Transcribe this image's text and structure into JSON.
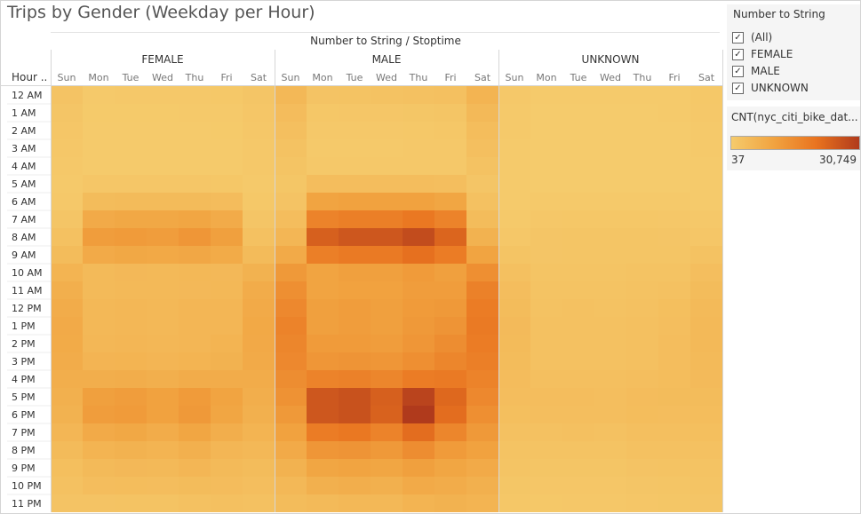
{
  "title": "Trips by Gender (Weekday per Hour)",
  "column_field_header": "Number to String / Stoptime",
  "row_field_header": "Hour ..",
  "filter": {
    "title": "Number to String",
    "options": [
      {
        "label": "(All)",
        "checked": true
      },
      {
        "label": "FEMALE",
        "checked": true
      },
      {
        "label": "MALE",
        "checked": true
      },
      {
        "label": "UNKNOWN",
        "checked": true
      }
    ]
  },
  "legend": {
    "title": "CNT(nyc_citi_bike_dat...",
    "min_label": "37",
    "max_label": "30,749",
    "colors": [
      "#f5cb6c",
      "#f1a340",
      "#e9731f",
      "#b03a1c"
    ]
  },
  "chart_data": {
    "type": "heatmap",
    "title": "Trips by Gender (Weekday per Hour)",
    "column_groups": [
      "FEMALE",
      "MALE",
      "UNKNOWN"
    ],
    "days": [
      "Sun",
      "Mon",
      "Tue",
      "Wed",
      "Thu",
      "Fri",
      "Sat"
    ],
    "hours": [
      "12 AM",
      "1 AM",
      "2 AM",
      "3 AM",
      "4 AM",
      "5 AM",
      "6 AM",
      "7 AM",
      "8 AM",
      "9 AM",
      "10 AM",
      "11 AM",
      "12 PM",
      "1 PM",
      "2 PM",
      "3 PM",
      "4 PM",
      "5 PM",
      "6 PM",
      "7 PM",
      "8 PM",
      "9 PM",
      "10 PM",
      "11 PM"
    ],
    "color_range": [
      37,
      30749
    ],
    "series": [
      {
        "name": "FEMALE",
        "values": [
          [
            2000,
            600,
            700,
            700,
            800,
            900,
            1500
          ],
          [
            1500,
            400,
            400,
            400,
            500,
            500,
            1200
          ],
          [
            1200,
            300,
            300,
            300,
            300,
            400,
            1000
          ],
          [
            1000,
            200,
            200,
            200,
            200,
            300,
            800
          ],
          [
            800,
            300,
            300,
            300,
            300,
            300,
            700
          ],
          [
            600,
            1200,
            1200,
            1200,
            1200,
            1100,
            500
          ],
          [
            800,
            4000,
            4200,
            4200,
            4200,
            3800,
            900
          ],
          [
            1500,
            8500,
            9000,
            9000,
            9500,
            8200,
            1500
          ],
          [
            2500,
            11500,
            12000,
            11500,
            13000,
            11000,
            2500
          ],
          [
            4000,
            8500,
            9000,
            8800,
            9200,
            8300,
            4200
          ],
          [
            6000,
            4500,
            4800,
            4700,
            5000,
            4800,
            6500
          ],
          [
            7200,
            4500,
            4700,
            4600,
            4800,
            5000,
            8000
          ],
          [
            8000,
            5000,
            5100,
            5000,
            5300,
            5500,
            8500
          ],
          [
            8500,
            5000,
            5200,
            5000,
            5300,
            5500,
            8800
          ],
          [
            8300,
            5200,
            5300,
            5100,
            5400,
            6000,
            8700
          ],
          [
            8000,
            5800,
            6000,
            5700,
            6000,
            6500,
            8500
          ],
          [
            7500,
            7500,
            7800,
            7300,
            8000,
            8000,
            8000
          ],
          [
            7000,
            11000,
            11500,
            10500,
            12000,
            10000,
            7500
          ],
          [
            6500,
            11500,
            12000,
            10500,
            12500,
            9500,
            7000
          ],
          [
            5500,
            8500,
            9000,
            8000,
            9500,
            7500,
            6000
          ],
          [
            4200,
            6000,
            6500,
            6000,
            7000,
            5500,
            5000
          ],
          [
            3200,
            4500,
            4800,
            4700,
            5300,
            4500,
            4000
          ],
          [
            2500,
            3500,
            3700,
            3600,
            4000,
            3800,
            3300
          ],
          [
            2000,
            2000,
            2200,
            2200,
            2600,
            2900,
            2700
          ]
        ]
      },
      {
        "name": "MALE",
        "values": [
          [
            5000,
            2000,
            2200,
            2300,
            2500,
            2800,
            6000
          ],
          [
            3800,
            1100,
            1200,
            1200,
            1400,
            1600,
            4700
          ],
          [
            3000,
            800,
            800,
            800,
            900,
            1100,
            3700
          ],
          [
            2400,
            600,
            600,
            600,
            700,
            800,
            3000
          ],
          [
            1800,
            800,
            800,
            800,
            800,
            800,
            2300
          ],
          [
            1400,
            3500,
            3500,
            3500,
            3500,
            3300,
            1500
          ],
          [
            2000,
            10000,
            10500,
            10500,
            10500,
            9500,
            2500
          ],
          [
            3500,
            17000,
            18000,
            18000,
            19500,
            17000,
            4000
          ],
          [
            5500,
            24000,
            25500,
            25500,
            27500,
            23000,
            6500
          ],
          [
            8500,
            18000,
            19000,
            19000,
            21000,
            18500,
            10000
          ],
          [
            12500,
            10000,
            11000,
            11000,
            12000,
            11000,
            14500
          ],
          [
            14500,
            10000,
            10500,
            10500,
            11500,
            11500,
            17500
          ],
          [
            16000,
            11000,
            11500,
            11000,
            12000,
            12500,
            18500
          ],
          [
            17000,
            11000,
            11500,
            11000,
            12500,
            13500,
            19000
          ],
          [
            16500,
            12000,
            12000,
            11500,
            13000,
            15000,
            18500
          ],
          [
            16000,
            13000,
            13500,
            13000,
            14500,
            16500,
            18000
          ],
          [
            15000,
            17000,
            17500,
            16500,
            18500,
            19000,
            17000
          ],
          [
            14000,
            25500,
            26500,
            24000,
            29000,
            22500,
            16000
          ],
          [
            12500,
            25500,
            26500,
            23500,
            30749,
            21500,
            14500
          ],
          [
            10500,
            18500,
            19500,
            17000,
            21500,
            16500,
            12500
          ],
          [
            8500,
            13000,
            13500,
            12500,
            15000,
            12000,
            10500
          ],
          [
            6500,
            9500,
            10000,
            9500,
            11000,
            9500,
            8500
          ],
          [
            5000,
            7000,
            7500,
            7000,
            8500,
            8000,
            7000
          ],
          [
            4000,
            4500,
            5000,
            5000,
            6000,
            6500,
            6000
          ]
        ]
      },
      {
        "name": "UNKNOWN",
        "values": [
          [
            800,
            200,
            200,
            250,
            300,
            350,
            900
          ],
          [
            600,
            120,
            120,
            130,
            150,
            200,
            700
          ],
          [
            450,
            80,
            80,
            90,
            100,
            130,
            550
          ],
          [
            350,
            60,
            60,
            60,
            70,
            90,
            450
          ],
          [
            250,
            60,
            60,
            60,
            70,
            70,
            300
          ],
          [
            200,
            150,
            150,
            150,
            150,
            150,
            200
          ],
          [
            300,
            500,
            500,
            500,
            500,
            500,
            350
          ],
          [
            600,
            1000,
            1100,
            1100,
            1100,
            1000,
            700
          ],
          [
            1000,
            1500,
            1600,
            1600,
            1700,
            1500,
            1300
          ],
          [
            1800,
            1500,
            1600,
            1600,
            1700,
            1700,
            2300
          ],
          [
            2800,
            1800,
            1900,
            1900,
            2100,
            2200,
            3300
          ],
          [
            3500,
            2100,
            2200,
            2200,
            2400,
            2700,
            4000
          ],
          [
            4000,
            2400,
            2500,
            2400,
            2700,
            3200,
            4500
          ],
          [
            4300,
            2500,
            2600,
            2500,
            2800,
            3400,
            4700
          ],
          [
            4200,
            2500,
            2600,
            2500,
            2800,
            3500,
            4600
          ],
          [
            4000,
            2600,
            2700,
            2600,
            2900,
            3500,
            4500
          ],
          [
            3800,
            3000,
            3100,
            3000,
            3300,
            3700,
            4300
          ],
          [
            3500,
            3500,
            3600,
            3400,
            3800,
            3900,
            4000
          ],
          [
            3200,
            3300,
            3400,
            3300,
            3700,
            3600,
            3700
          ],
          [
            2700,
            2700,
            2800,
            2700,
            3100,
            3100,
            3200
          ],
          [
            2200,
            2100,
            2200,
            2200,
            2500,
            2600,
            2700
          ],
          [
            1800,
            1600,
            1700,
            1700,
            2000,
            2100,
            2200
          ],
          [
            1400,
            1200,
            1300,
            1300,
            1500,
            1700,
            1800
          ],
          [
            1100,
            900,
            1000,
            1000,
            1200,
            1400,
            1500
          ]
        ]
      }
    ]
  }
}
